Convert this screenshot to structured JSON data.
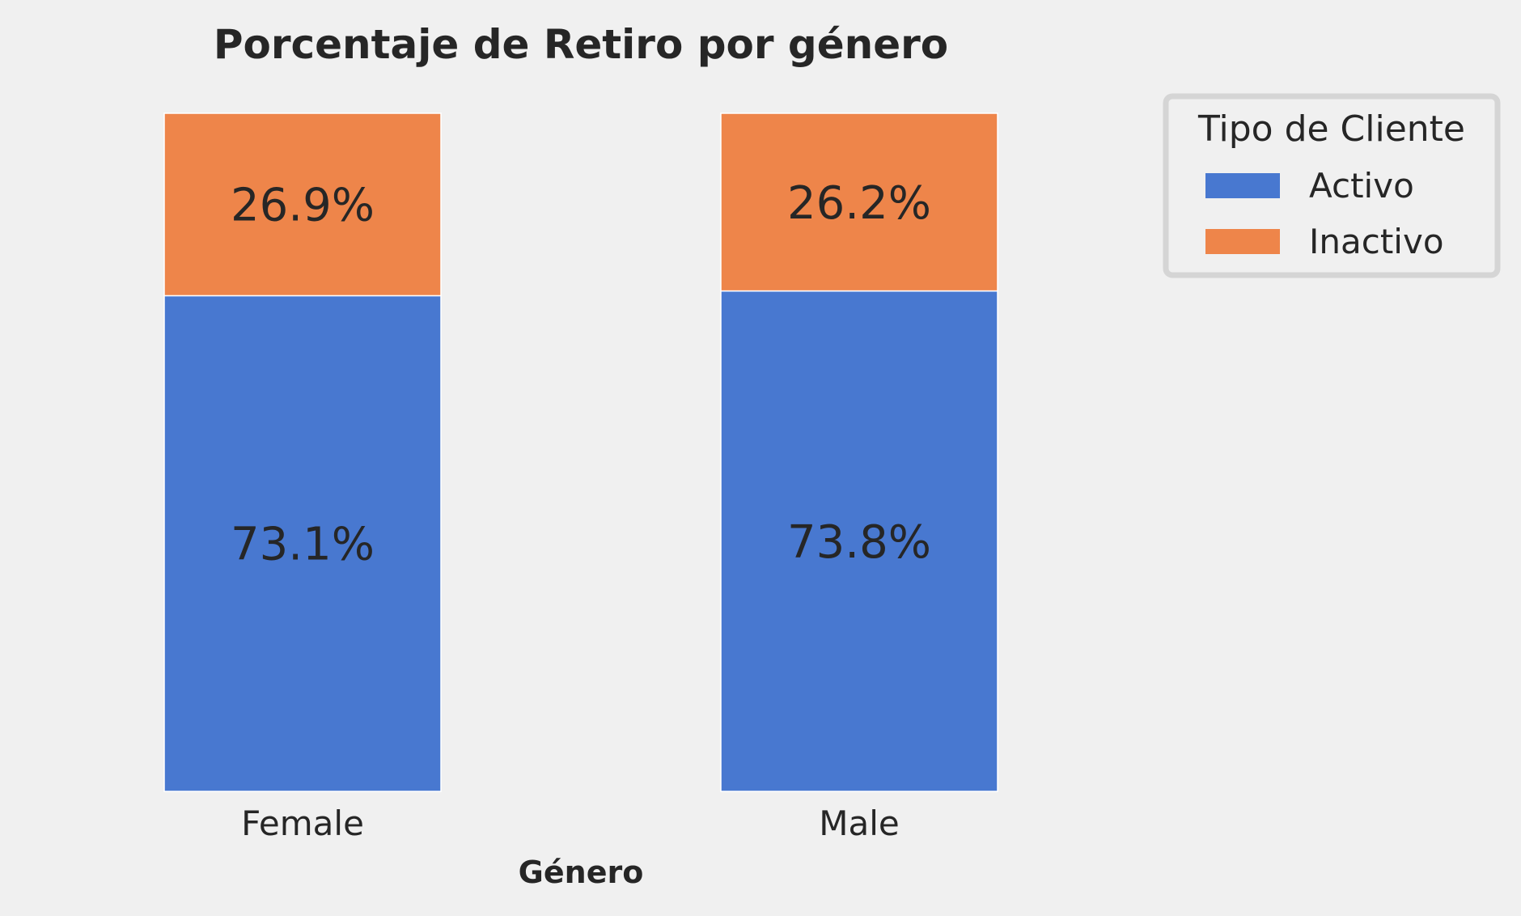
{
  "chart_data": {
    "type": "bar",
    "stacked": true,
    "title": "Porcentaje de Retiro por género",
    "xlabel": "Género",
    "ylabel": "",
    "ylim": [
      0,
      100
    ],
    "grid": false,
    "categories": [
      "Female",
      "Male"
    ],
    "series": [
      {
        "name": "Activo",
        "values": [
          73.1,
          73.8
        ],
        "labels": [
          "73.1%",
          "73.8%"
        ],
        "color": "#4878d0"
      },
      {
        "name": "Inactivo",
        "values": [
          26.9,
          26.2
        ],
        "labels": [
          "26.9%",
          "26.2%"
        ],
        "color": "#ee854a"
      }
    ],
    "legend": {
      "title": "Tipo de Cliente",
      "placement": "top-right-outside"
    }
  },
  "colors": {
    "background": "#f0f0f0",
    "text": "#262626",
    "legend_border": "#d5d5d5"
  }
}
